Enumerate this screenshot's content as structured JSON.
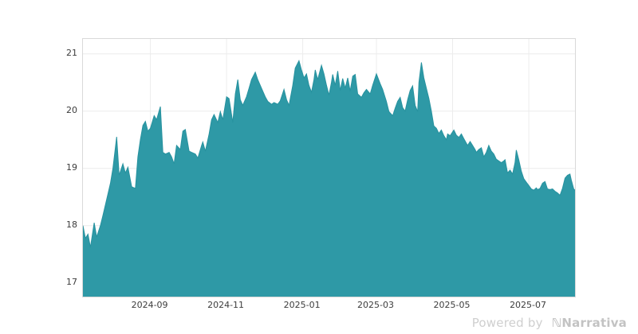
{
  "colors": {
    "area_fill": "#2E99A6",
    "area_edge": "#27929F",
    "grid_line": "#ececec",
    "plot_border": "#d9d9d9",
    "tick_text": "#3c3c3c",
    "watermark_text": "#c9c9c9"
  },
  "watermark": {
    "prefix": "Powered by",
    "logo_glyph": "ℕ",
    "brand": "Narrativa"
  },
  "chart_data": {
    "type": "area",
    "title": "",
    "xlabel": "",
    "ylabel": "",
    "legend": "none",
    "grid": "on",
    "x_unit": "days-from-series-start",
    "x_domain": [
      0,
      394
    ],
    "y_domain": [
      16.76,
      21.26
    ],
    "y_ticks": [
      {
        "v": 17,
        "label": "17"
      },
      {
        "v": 18,
        "label": "18"
      },
      {
        "v": 19,
        "label": "19"
      },
      {
        "v": 20,
        "label": "20"
      },
      {
        "v": 21,
        "label": "21"
      }
    ],
    "x_ticks": [
      {
        "d": 54,
        "label": "2024-09"
      },
      {
        "d": 115,
        "label": "2024-11"
      },
      {
        "d": 176,
        "label": "2025-01"
      },
      {
        "d": 235,
        "label": "2025-03"
      },
      {
        "d": 296,
        "label": "2025-05"
      },
      {
        "d": 357,
        "label": "2025-07"
      }
    ],
    "points": [
      [
        0,
        18.0
      ],
      [
        2,
        17.78
      ],
      [
        4,
        17.85
      ],
      [
        6,
        17.62
      ],
      [
        9,
        18.05
      ],
      [
        11,
        17.8
      ],
      [
        14,
        18.0
      ],
      [
        16,
        18.18
      ],
      [
        19,
        18.46
      ],
      [
        22,
        18.74
      ],
      [
        24,
        19.0
      ],
      [
        27,
        19.55
      ],
      [
        29,
        18.88
      ],
      [
        32,
        19.08
      ],
      [
        34,
        18.92
      ],
      [
        36,
        19.02
      ],
      [
        39,
        18.68
      ],
      [
        42,
        18.65
      ],
      [
        44,
        19.2
      ],
      [
        46,
        19.5
      ],
      [
        48,
        19.75
      ],
      [
        50,
        19.82
      ],
      [
        52,
        19.65
      ],
      [
        54,
        19.7
      ],
      [
        57,
        19.92
      ],
      [
        59,
        19.85
      ],
      [
        62,
        20.08
      ],
      [
        64,
        19.28
      ],
      [
        66,
        19.25
      ],
      [
        69,
        19.28
      ],
      [
        71,
        19.2
      ],
      [
        73,
        19.08
      ],
      [
        75,
        19.4
      ],
      [
        78,
        19.33
      ],
      [
        80,
        19.65
      ],
      [
        82,
        19.68
      ],
      [
        85,
        19.3
      ],
      [
        87,
        19.28
      ],
      [
        90,
        19.25
      ],
      [
        92,
        19.18
      ],
      [
        95,
        19.4
      ],
      [
        96,
        19.46
      ],
      [
        98,
        19.3
      ],
      [
        101,
        19.6
      ],
      [
        103,
        19.85
      ],
      [
        105,
        19.94
      ],
      [
        108,
        19.8
      ],
      [
        110,
        19.99
      ],
      [
        112,
        19.85
      ],
      [
        115,
        20.25
      ],
      [
        117,
        20.22
      ],
      [
        120,
        19.8
      ],
      [
        122,
        20.3
      ],
      [
        124,
        20.55
      ],
      [
        126,
        20.2
      ],
      [
        128,
        20.1
      ],
      [
        131,
        20.25
      ],
      [
        133,
        20.4
      ],
      [
        135,
        20.55
      ],
      [
        138,
        20.68
      ],
      [
        140,
        20.55
      ],
      [
        143,
        20.4
      ],
      [
        146,
        20.25
      ],
      [
        148,
        20.17
      ],
      [
        151,
        20.12
      ],
      [
        153,
        20.15
      ],
      [
        156,
        20.12
      ],
      [
        158,
        20.18
      ],
      [
        161,
        20.38
      ],
      [
        163,
        20.2
      ],
      [
        165,
        20.1
      ],
      [
        168,
        20.45
      ],
      [
        170,
        20.75
      ],
      [
        173,
        20.88
      ],
      [
        175,
        20.72
      ],
      [
        177,
        20.58
      ],
      [
        179,
        20.65
      ],
      [
        181,
        20.45
      ],
      [
        183,
        20.33
      ],
      [
        185,
        20.55
      ],
      [
        186,
        20.72
      ],
      [
        188,
        20.55
      ],
      [
        191,
        20.8
      ],
      [
        193,
        20.65
      ],
      [
        195,
        20.45
      ],
      [
        197,
        20.28
      ],
      [
        199,
        20.5
      ],
      [
        200,
        20.64
      ],
      [
        202,
        20.45
      ],
      [
        204,
        20.7
      ],
      [
        206,
        20.36
      ],
      [
        208,
        20.57
      ],
      [
        210,
        20.4
      ],
      [
        212,
        20.58
      ],
      [
        214,
        20.35
      ],
      [
        216,
        20.61
      ],
      [
        218,
        20.64
      ],
      [
        220,
        20.3
      ],
      [
        223,
        20.24
      ],
      [
        225,
        20.32
      ],
      [
        227,
        20.38
      ],
      [
        230,
        20.3
      ],
      [
        232,
        20.45
      ],
      [
        235,
        20.65
      ],
      [
        238,
        20.48
      ],
      [
        240,
        20.38
      ],
      [
        243,
        20.17
      ],
      [
        245,
        19.99
      ],
      [
        248,
        19.92
      ],
      [
        250,
        20.05
      ],
      [
        252,
        20.17
      ],
      [
        254,
        20.24
      ],
      [
        256,
        20.06
      ],
      [
        258,
        20.0
      ],
      [
        260,
        20.2
      ],
      [
        262,
        20.36
      ],
      [
        264,
        20.44
      ],
      [
        266,
        20.1
      ],
      [
        268,
        19.99
      ],
      [
        269,
        20.5
      ],
      [
        271,
        20.85
      ],
      [
        273,
        20.58
      ],
      [
        275,
        20.4
      ],
      [
        277,
        20.22
      ],
      [
        279,
        20.0
      ],
      [
        281,
        19.74
      ],
      [
        283,
        19.7
      ],
      [
        285,
        19.61
      ],
      [
        287,
        19.67
      ],
      [
        289,
        19.57
      ],
      [
        291,
        19.5
      ],
      [
        292,
        19.6
      ],
      [
        294,
        19.57
      ],
      [
        297,
        19.67
      ],
      [
        299,
        19.58
      ],
      [
        301,
        19.54
      ],
      [
        303,
        19.6
      ],
      [
        305,
        19.52
      ],
      [
        308,
        19.4
      ],
      [
        310,
        19.47
      ],
      [
        312,
        19.4
      ],
      [
        314,
        19.33
      ],
      [
        315,
        19.28
      ],
      [
        317,
        19.33
      ],
      [
        319,
        19.36
      ],
      [
        321,
        19.2
      ],
      [
        323,
        19.28
      ],
      [
        325,
        19.4
      ],
      [
        327,
        19.3
      ],
      [
        329,
        19.25
      ],
      [
        331,
        19.16
      ],
      [
        333,
        19.13
      ],
      [
        335,
        19.1
      ],
      [
        337,
        19.13
      ],
      [
        338,
        19.15
      ],
      [
        340,
        18.92
      ],
      [
        342,
        18.97
      ],
      [
        344,
        18.9
      ],
      [
        346,
        19.1
      ],
      [
        347,
        19.32
      ],
      [
        349,
        19.15
      ],
      [
        351,
        18.95
      ],
      [
        353,
        18.82
      ],
      [
        355,
        18.76
      ],
      [
        357,
        18.7
      ],
      [
        359,
        18.64
      ],
      [
        361,
        18.62
      ],
      [
        363,
        18.66
      ],
      [
        364,
        18.63
      ],
      [
        366,
        18.65
      ],
      [
        368,
        18.74
      ],
      [
        370,
        18.77
      ],
      [
        372,
        18.64
      ],
      [
        374,
        18.63
      ],
      [
        376,
        18.64
      ],
      [
        378,
        18.6
      ],
      [
        380,
        18.57
      ],
      [
        382,
        18.53
      ],
      [
        384,
        18.65
      ],
      [
        386,
        18.83
      ],
      [
        388,
        18.88
      ],
      [
        390,
        18.9
      ],
      [
        391,
        18.8
      ],
      [
        393,
        18.64
      ],
      [
        394,
        18.62
      ]
    ]
  }
}
